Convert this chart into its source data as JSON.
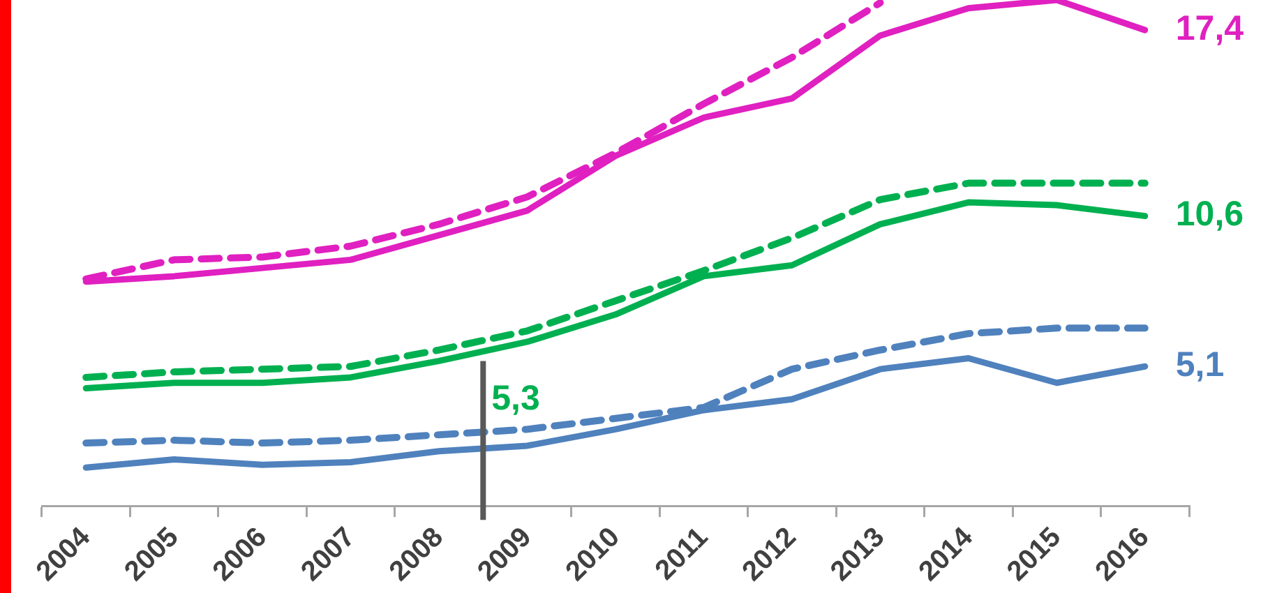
{
  "chart_data": {
    "type": "line",
    "categories": [
      "2004",
      "2005",
      "2006",
      "2007",
      "2008",
      "2009",
      "2010",
      "2011",
      "2012",
      "2013",
      "2014",
      "2015",
      "2016"
    ],
    "marker": "none",
    "tick_labels": "x",
    "series": [
      {
        "color": "#e020c0",
        "line_style": "solid",
        "values": [
          8.2,
          8.4,
          8.7,
          9.0,
          9.9,
          10.8,
          12.8,
          14.2,
          14.9,
          17.2,
          18.2,
          18.5,
          17.4
        ],
        "value_labels": [
          null,
          null,
          null,
          null,
          null,
          null,
          null,
          null,
          null,
          null,
          null,
          null,
          "17,4"
        ]
      },
      {
        "color": "#e020c0",
        "line_style": "dashed",
        "values": [
          8.3,
          9.0,
          9.1,
          9.5,
          10.3,
          11.3,
          12.9,
          14.7,
          16.4,
          18.4,
          null,
          null,
          null
        ]
      },
      {
        "color": "#00b050",
        "line_style": "solid",
        "values": [
          4.3,
          4.5,
          4.5,
          4.7,
          5.3,
          6.0,
          7.0,
          8.4,
          8.8,
          10.3,
          11.1,
          11.0,
          10.6
        ],
        "value_labels": [
          null,
          null,
          null,
          null,
          null,
          null,
          null,
          null,
          null,
          null,
          null,
          null,
          "10,6"
        ]
      },
      {
        "color": "#00b050",
        "line_style": "dashed",
        "values": [
          4.7,
          4.9,
          5.0,
          5.1,
          5.7,
          6.4,
          7.5,
          8.6,
          9.8,
          11.2,
          11.8,
          11.8,
          11.8
        ]
      },
      {
        "color": "#4f81bd",
        "line_style": "solid",
        "values": [
          1.4,
          1.7,
          1.5,
          1.6,
          2.0,
          2.2,
          2.8,
          3.5,
          3.9,
          5.0,
          5.4,
          4.5,
          5.1
        ],
        "value_labels": [
          null,
          null,
          null,
          null,
          null,
          null,
          null,
          null,
          null,
          null,
          null,
          null,
          "5,1"
        ]
      },
      {
        "color": "#4f81bd",
        "line_style": "dashed",
        "values": [
          2.3,
          2.4,
          2.3,
          2.4,
          2.6,
          2.8,
          3.2,
          3.6,
          5.0,
          5.7,
          6.3,
          6.5,
          6.5
        ]
      }
    ],
    "annotations": [
      {
        "text": "5,3",
        "x": "2008",
        "y": 5.3
      }
    ]
  }
}
